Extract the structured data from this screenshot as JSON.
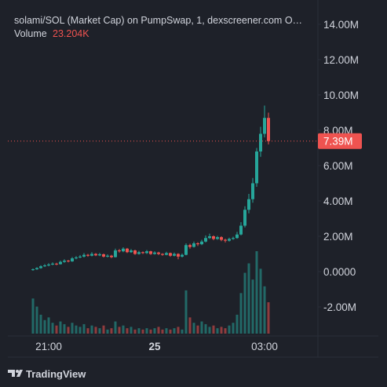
{
  "chart_data": {
    "type": "candlestick",
    "title": "solami/SOL (Market Cap) on PumpSwap, 1, dexscreener.com  O…",
    "categories": [
      null,
      null,
      null,
      null,
      "21:00",
      null,
      null,
      null,
      null,
      null,
      null,
      null,
      null,
      null,
      null,
      null,
      null,
      null,
      null,
      null,
      null,
      null,
      null,
      null,
      null,
      null,
      null,
      null,
      null,
      null,
      null,
      "25",
      null,
      null,
      null,
      null,
      null,
      null,
      null,
      null,
      null,
      null,
      null,
      null,
      null,
      null,
      null,
      null,
      null,
      null,
      null,
      null,
      null,
      null,
      null,
      null,
      null,
      null,
      null,
      "03:00",
      null
    ],
    "open": [
      0.1,
      0.13,
      0.2,
      0.3,
      0.35,
      0.4,
      0.45,
      0.42,
      0.55,
      0.62,
      0.58,
      0.75,
      0.8,
      0.85,
      0.95,
      0.9,
      1.0,
      0.92,
      0.98,
      0.85,
      0.9,
      0.82,
      1.2,
      1.15,
      1.3,
      1.1,
      1.2,
      1.0,
      1.1,
      1.05,
      1.15,
      1.0,
      1.08,
      1.0,
      0.95,
      1.05,
      0.9,
      1.0,
      0.85,
      0.95,
      1.5,
      1.4,
      1.6,
      1.55,
      1.7,
      1.9,
      2.0,
      1.85,
      1.95,
      1.8,
      1.75,
      1.85,
      1.9,
      2.1,
      2.6,
      3.5,
      4.1,
      5.0,
      6.8,
      7.8,
      8.7
    ],
    "high": [
      0.18,
      0.25,
      0.36,
      0.42,
      0.48,
      0.52,
      0.5,
      0.62,
      0.7,
      0.66,
      0.82,
      0.88,
      0.94,
      1.05,
      1.0,
      1.1,
      1.05,
      1.06,
      1.02,
      0.98,
      0.95,
      1.3,
      1.28,
      1.38,
      1.34,
      1.28,
      1.24,
      1.18,
      1.14,
      1.22,
      1.18,
      1.15,
      1.12,
      1.04,
      1.12,
      1.08,
      1.08,
      1.04,
      1.02,
      1.6,
      1.58,
      1.7,
      1.66,
      1.8,
      2.05,
      2.15,
      2.05,
      2.02,
      2.0,
      1.86,
      1.92,
      1.98,
      2.25,
      2.8,
      3.7,
      4.4,
      5.3,
      7.0,
      8.2,
      9.4,
      9.0
    ],
    "low": [
      0.05,
      0.1,
      0.16,
      0.26,
      0.3,
      0.36,
      0.36,
      0.4,
      0.5,
      0.52,
      0.55,
      0.7,
      0.76,
      0.8,
      0.84,
      0.86,
      0.88,
      0.88,
      0.8,
      0.8,
      0.76,
      0.8,
      1.08,
      1.1,
      1.05,
      1.06,
      0.95,
      0.96,
      1.0,
      1.0,
      0.95,
      0.96,
      0.94,
      0.9,
      0.92,
      0.84,
      0.86,
      0.7,
      0.8,
      0.92,
      1.3,
      1.36,
      1.45,
      1.5,
      1.65,
      1.85,
      1.78,
      1.8,
      1.72,
      1.65,
      1.7,
      1.8,
      1.86,
      2.05,
      2.5,
      3.3,
      3.9,
      4.8,
      6.5,
      7.6,
      7.2
    ],
    "close": [
      0.13,
      0.2,
      0.3,
      0.35,
      0.4,
      0.45,
      0.42,
      0.55,
      0.62,
      0.58,
      0.75,
      0.8,
      0.85,
      0.95,
      0.9,
      1.0,
      0.92,
      0.98,
      0.85,
      0.9,
      0.82,
      1.2,
      1.15,
      1.3,
      1.1,
      1.2,
      1.0,
      1.1,
      1.05,
      1.15,
      1.0,
      1.08,
      1.0,
      0.95,
      1.05,
      0.9,
      1.0,
      0.85,
      0.95,
      1.5,
      1.4,
      1.6,
      1.55,
      1.7,
      1.9,
      2.0,
      1.85,
      1.95,
      1.8,
      1.75,
      1.85,
      1.9,
      2.1,
      2.6,
      3.5,
      4.1,
      5.0,
      6.8,
      7.8,
      8.7,
      7.39
    ],
    "close_last_label": "7.39M",
    "volume": {
      "name": "Volume",
      "values": [
        26,
        20,
        14,
        10,
        12,
        8,
        6,
        9,
        7,
        5,
        8,
        6,
        5,
        7,
        4,
        6,
        5,
        4,
        6,
        3,
        4,
        9,
        5,
        6,
        4,
        5,
        3,
        4,
        3,
        4,
        3,
        4,
        5,
        3,
        4,
        3,
        4,
        5,
        3,
        32,
        12,
        8,
        6,
        9,
        7,
        5,
        6,
        4,
        5,
        4,
        6,
        8,
        14,
        30,
        45,
        52,
        40,
        61,
        48,
        35,
        23.204
      ],
      "last_label": "23.204K"
    },
    "up_color": "#26a69a",
    "down_color": "#ef5350",
    "ylim": [
      -3.51,
      14.93
    ],
    "yticks": [
      {
        "value": 14,
        "label": "14.00M"
      },
      {
        "value": 12,
        "label": "12.00M"
      },
      {
        "value": 10,
        "label": "10.00M"
      },
      {
        "value": 8,
        "label": "8.00M"
      },
      {
        "value": 6,
        "label": "6.00M"
      },
      {
        "value": 4,
        "label": "4.00M"
      },
      {
        "value": 2,
        "label": "2.00M"
      },
      {
        "value": 0,
        "label": "0.0000"
      },
      {
        "value": -2,
        "label": "-2.00M"
      }
    ],
    "grid": false
  },
  "footer": {
    "brand": "TradingView"
  }
}
